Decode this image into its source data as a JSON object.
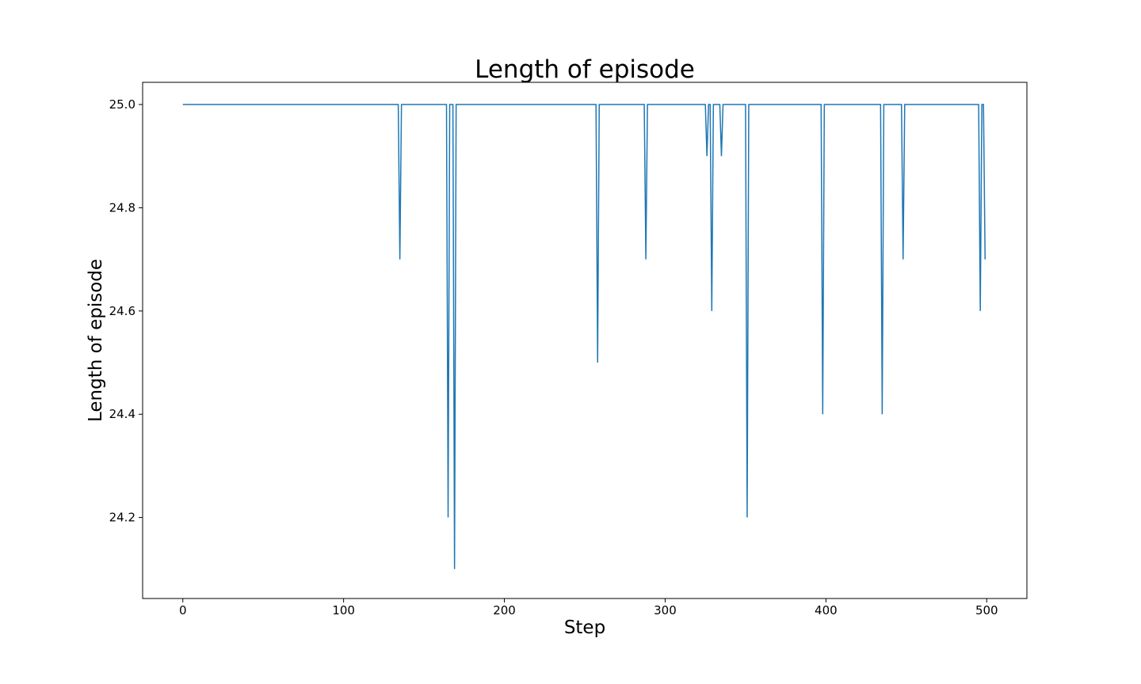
{
  "chart_data": {
    "type": "line",
    "title": "Length of episode",
    "xlabel": "Step",
    "ylabel": "Length of episode",
    "xlim": [
      -25,
      525
    ],
    "ylim": [
      24.043,
      25.043
    ],
    "xticks": [
      0,
      100,
      200,
      300,
      400,
      500
    ],
    "xtick_labels": [
      "0",
      "100",
      "200",
      "300",
      "400",
      "500"
    ],
    "yticks": [
      24.2,
      24.4,
      24.6,
      24.8,
      25.0
    ],
    "ytick_labels": [
      "24.2",
      "24.4",
      "24.6",
      "24.8",
      "25.0"
    ],
    "grid": false,
    "legend": "none",
    "series_color": "#1f77b4",
    "dips": [
      {
        "x": 135,
        "y": 24.7
      },
      {
        "x": 165,
        "y": 24.2
      },
      {
        "x": 169,
        "y": 24.1
      },
      {
        "x": 258,
        "y": 24.5
      },
      {
        "x": 288,
        "y": 24.7
      },
      {
        "x": 326,
        "y": 24.9
      },
      {
        "x": 329,
        "y": 24.6
      },
      {
        "x": 335,
        "y": 24.9
      },
      {
        "x": 351,
        "y": 24.2
      },
      {
        "x": 398,
        "y": 24.4
      },
      {
        "x": 435,
        "y": 24.4
      },
      {
        "x": 448,
        "y": 24.7
      },
      {
        "x": 496,
        "y": 24.6
      },
      {
        "x": 499,
        "y": 24.7
      }
    ],
    "default_y": 25.0,
    "x_range": [
      0,
      499
    ]
  }
}
